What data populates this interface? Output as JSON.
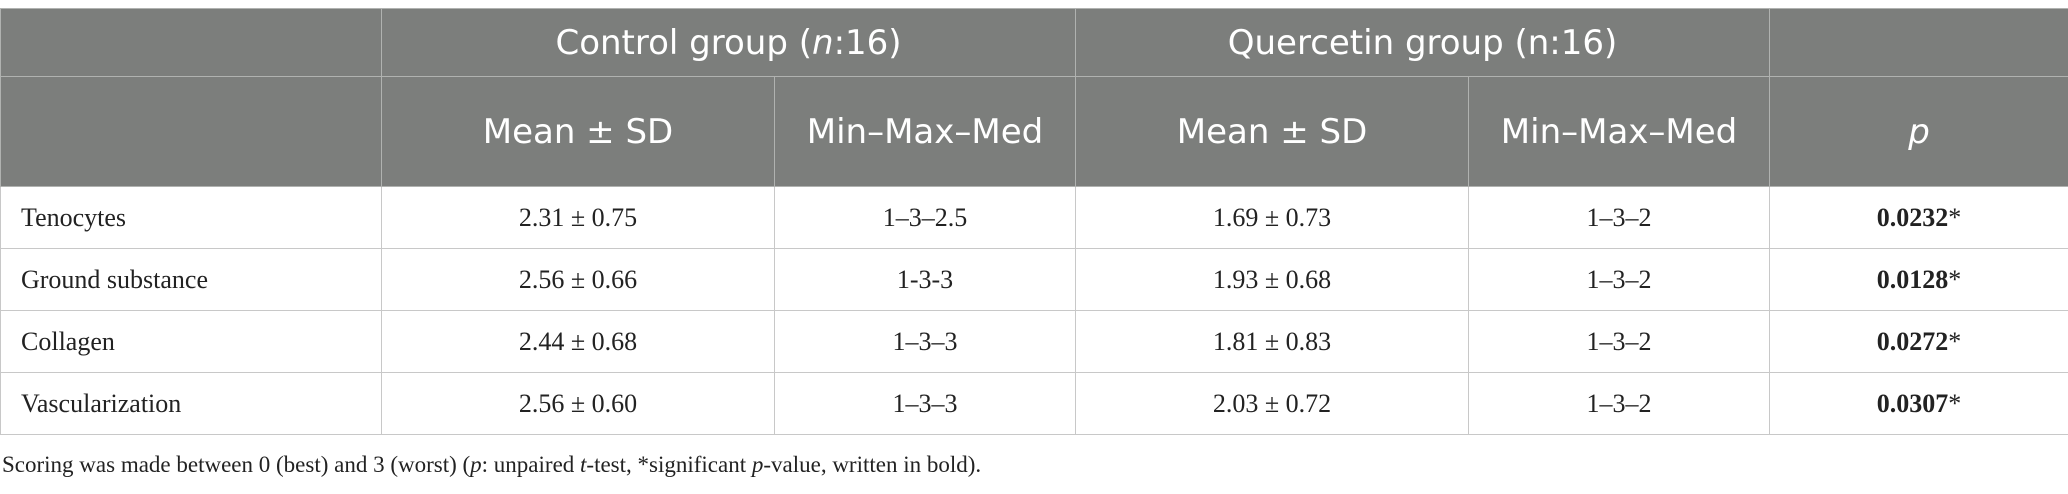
{
  "table": {
    "group_headers": {
      "control_pre": "Control group (",
      "control_n": "n",
      "control_post": ":16)",
      "quercetin": "Quercetin group (n:16)"
    },
    "subheaders": {
      "mean_sd_1": "Mean ± SD",
      "minmax_1": "Min–Max–Med",
      "mean_sd_2": "Mean ± SD",
      "minmax_2": "Min–Max–Med",
      "p": "p"
    },
    "rows": [
      {
        "label": "Tenocytes",
        "control_mean": "2.31 ± 0.75",
        "control_range": "1–3–2.5",
        "quercetin_mean": "1.69 ± 0.73",
        "quercetin_range": "1–3–2",
        "p": "0.0232",
        "star": "*"
      },
      {
        "label": "Ground substance",
        "control_mean": "2.56 ± 0.66",
        "control_range": "1-3-3",
        "quercetin_mean": "1.93 ± 0.68",
        "quercetin_range": "1–3–2",
        "p": "0.0128",
        "star": "*"
      },
      {
        "label": "Collagen",
        "control_mean": "2.44 ± 0.68",
        "control_range": "1–3–3",
        "quercetin_mean": "1.81 ± 0.83",
        "quercetin_range": "1–3–2",
        "p": "0.0272",
        "star": "*"
      },
      {
        "label": "Vascularization",
        "control_mean": "2.56 ± 0.60",
        "control_range": "1–3–3",
        "quercetin_mean": "2.03 ± 0.72",
        "quercetin_range": "1–3–2",
        "p": "0.0307",
        "star": "*"
      }
    ]
  },
  "footnote": {
    "part1": "Scoring was made between 0 (best) and 3 (worst) (",
    "p1": "p",
    "part2": ": unpaired ",
    "t": "t",
    "part3": "-test, *significant ",
    "p2": "p",
    "part4": "-value, written in bold)."
  }
}
